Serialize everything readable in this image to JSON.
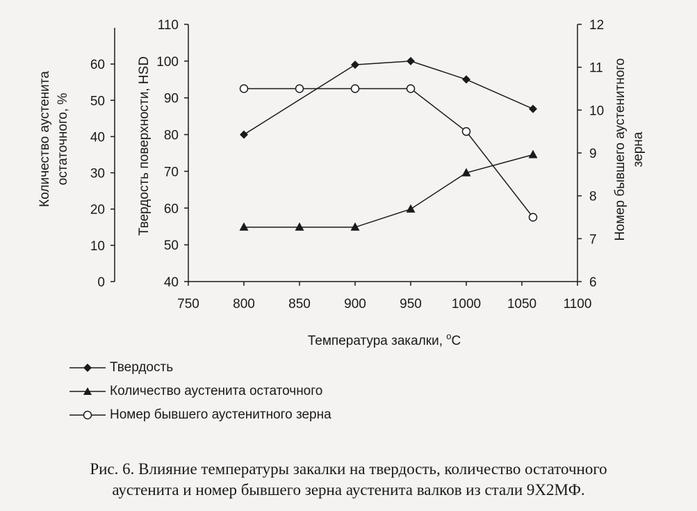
{
  "chart_data": {
    "type": "line",
    "xlabel_main": "Температура закалки, ",
    "xlabel_sup": "o",
    "xlabel_unit": "C",
    "x_ticks": [
      "750",
      "800",
      "850",
      "900",
      "950",
      "1000",
      "1050",
      "1100"
    ],
    "xlim": [
      750,
      1100
    ],
    "axes": {
      "austenite": {
        "label_lines": [
          "Количество аустенита",
          "остаточного, %"
        ],
        "ylim": [
          0,
          70
        ],
        "ticks": [
          "0",
          "10",
          "20",
          "30",
          "40",
          "50",
          "60"
        ]
      },
      "hardness": {
        "label": "Твердость поверхности, HSD",
        "ylim": [
          40,
          110
        ],
        "ticks": [
          "40",
          "50",
          "60",
          "70",
          "80",
          "90",
          "100",
          "110"
        ]
      },
      "grain": {
        "label_lines": [
          "Номер бывшего аустенитного",
          "зерна"
        ],
        "ylim": [
          6,
          12
        ],
        "ticks": [
          "6",
          "7",
          "8",
          "9",
          "10",
          "11",
          "12"
        ]
      }
    },
    "series": [
      {
        "name": "Твердость",
        "axis": "hardness",
        "marker": "diamond",
        "x": [
          800,
          900,
          950,
          1000,
          1060
        ],
        "y": [
          80,
          99,
          100,
          95,
          87
        ]
      },
      {
        "name": "Количество аустенита остаточного",
        "axis": "austenite",
        "marker": "triangle",
        "x": [
          800,
          850,
          900,
          950,
          1000,
          1060
        ],
        "y": [
          15,
          15,
          15,
          20,
          30,
          35
        ]
      },
      {
        "name": "Номер бывшего аустенитного зерна",
        "axis": "grain",
        "marker": "circle",
        "x": [
          800,
          850,
          900,
          950,
          1000,
          1060
        ],
        "y": [
          10.5,
          10.5,
          10.5,
          10.5,
          9.5,
          7.5
        ]
      }
    ]
  },
  "legend": {
    "items": [
      {
        "label": "Твердость",
        "marker": "diamond"
      },
      {
        "label": "Количество аустенита остаточного",
        "marker": "triangle"
      },
      {
        "label": "Номер бывшего аустенитного зерна",
        "marker": "circle"
      }
    ]
  },
  "caption": {
    "line1": "Рис. 6. Влияние температуры закалки на твердость, количество остаточного",
    "line2": "аустенита и номер бывшего зерна аустенита валков из стали 9Х2МФ."
  }
}
